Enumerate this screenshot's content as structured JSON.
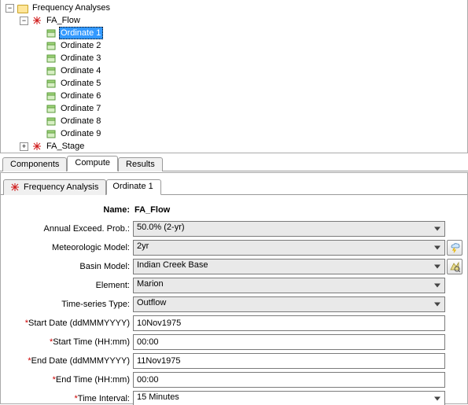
{
  "tree": {
    "root": {
      "label": "Frequency Analyses",
      "expander": "−"
    },
    "fa_flow": {
      "label": "FA_Flow",
      "expander": "−"
    },
    "ordinates": [
      "Ordinate 1",
      "Ordinate 2",
      "Ordinate 3",
      "Ordinate 4",
      "Ordinate 5",
      "Ordinate 6",
      "Ordinate 7",
      "Ordinate 8",
      "Ordinate 9"
    ],
    "selected_index": 0,
    "fa_stage": {
      "label": "FA_Stage",
      "expander": "+"
    }
  },
  "top_tabs": {
    "items": [
      "Components",
      "Compute",
      "Results"
    ],
    "active_index": 1
  },
  "editor_tabs": {
    "items": [
      "Frequency Analysis",
      "Ordinate 1"
    ],
    "active_index": 1
  },
  "form": {
    "name": {
      "label": "Name:",
      "value": "FA_Flow"
    },
    "aep": {
      "label": "Annual Exceed. Prob.:",
      "value": "50.0% (2-yr)"
    },
    "met": {
      "label": "Meteorologic Model:",
      "value": "2yr"
    },
    "basin": {
      "label": "Basin Model:",
      "value": "Indian Creek Base"
    },
    "elem": {
      "label": "Element:",
      "value": "Marion"
    },
    "tstype": {
      "label": "Time-series Type:",
      "value": "Outflow"
    },
    "start_date": {
      "label": "Start Date (ddMMMYYYY)",
      "value": "10Nov1975",
      "required": true
    },
    "start_time": {
      "label": "Start Time (HH:mm)",
      "value": "00:00",
      "required": true
    },
    "end_date": {
      "label": "End Date (ddMMMYYYY)",
      "value": "11Nov1975",
      "required": true
    },
    "end_time": {
      "label": "End Time (HH:mm)",
      "value": "00:00",
      "required": true
    },
    "interval": {
      "label": "Time Interval:",
      "value": "15 Minutes",
      "required": true
    }
  },
  "colors": {
    "selection_bg": "#3399ff",
    "selection_fg": "#ffffff",
    "select_field_bg": "#e9e9e9",
    "required_mark": "#cc0000"
  }
}
